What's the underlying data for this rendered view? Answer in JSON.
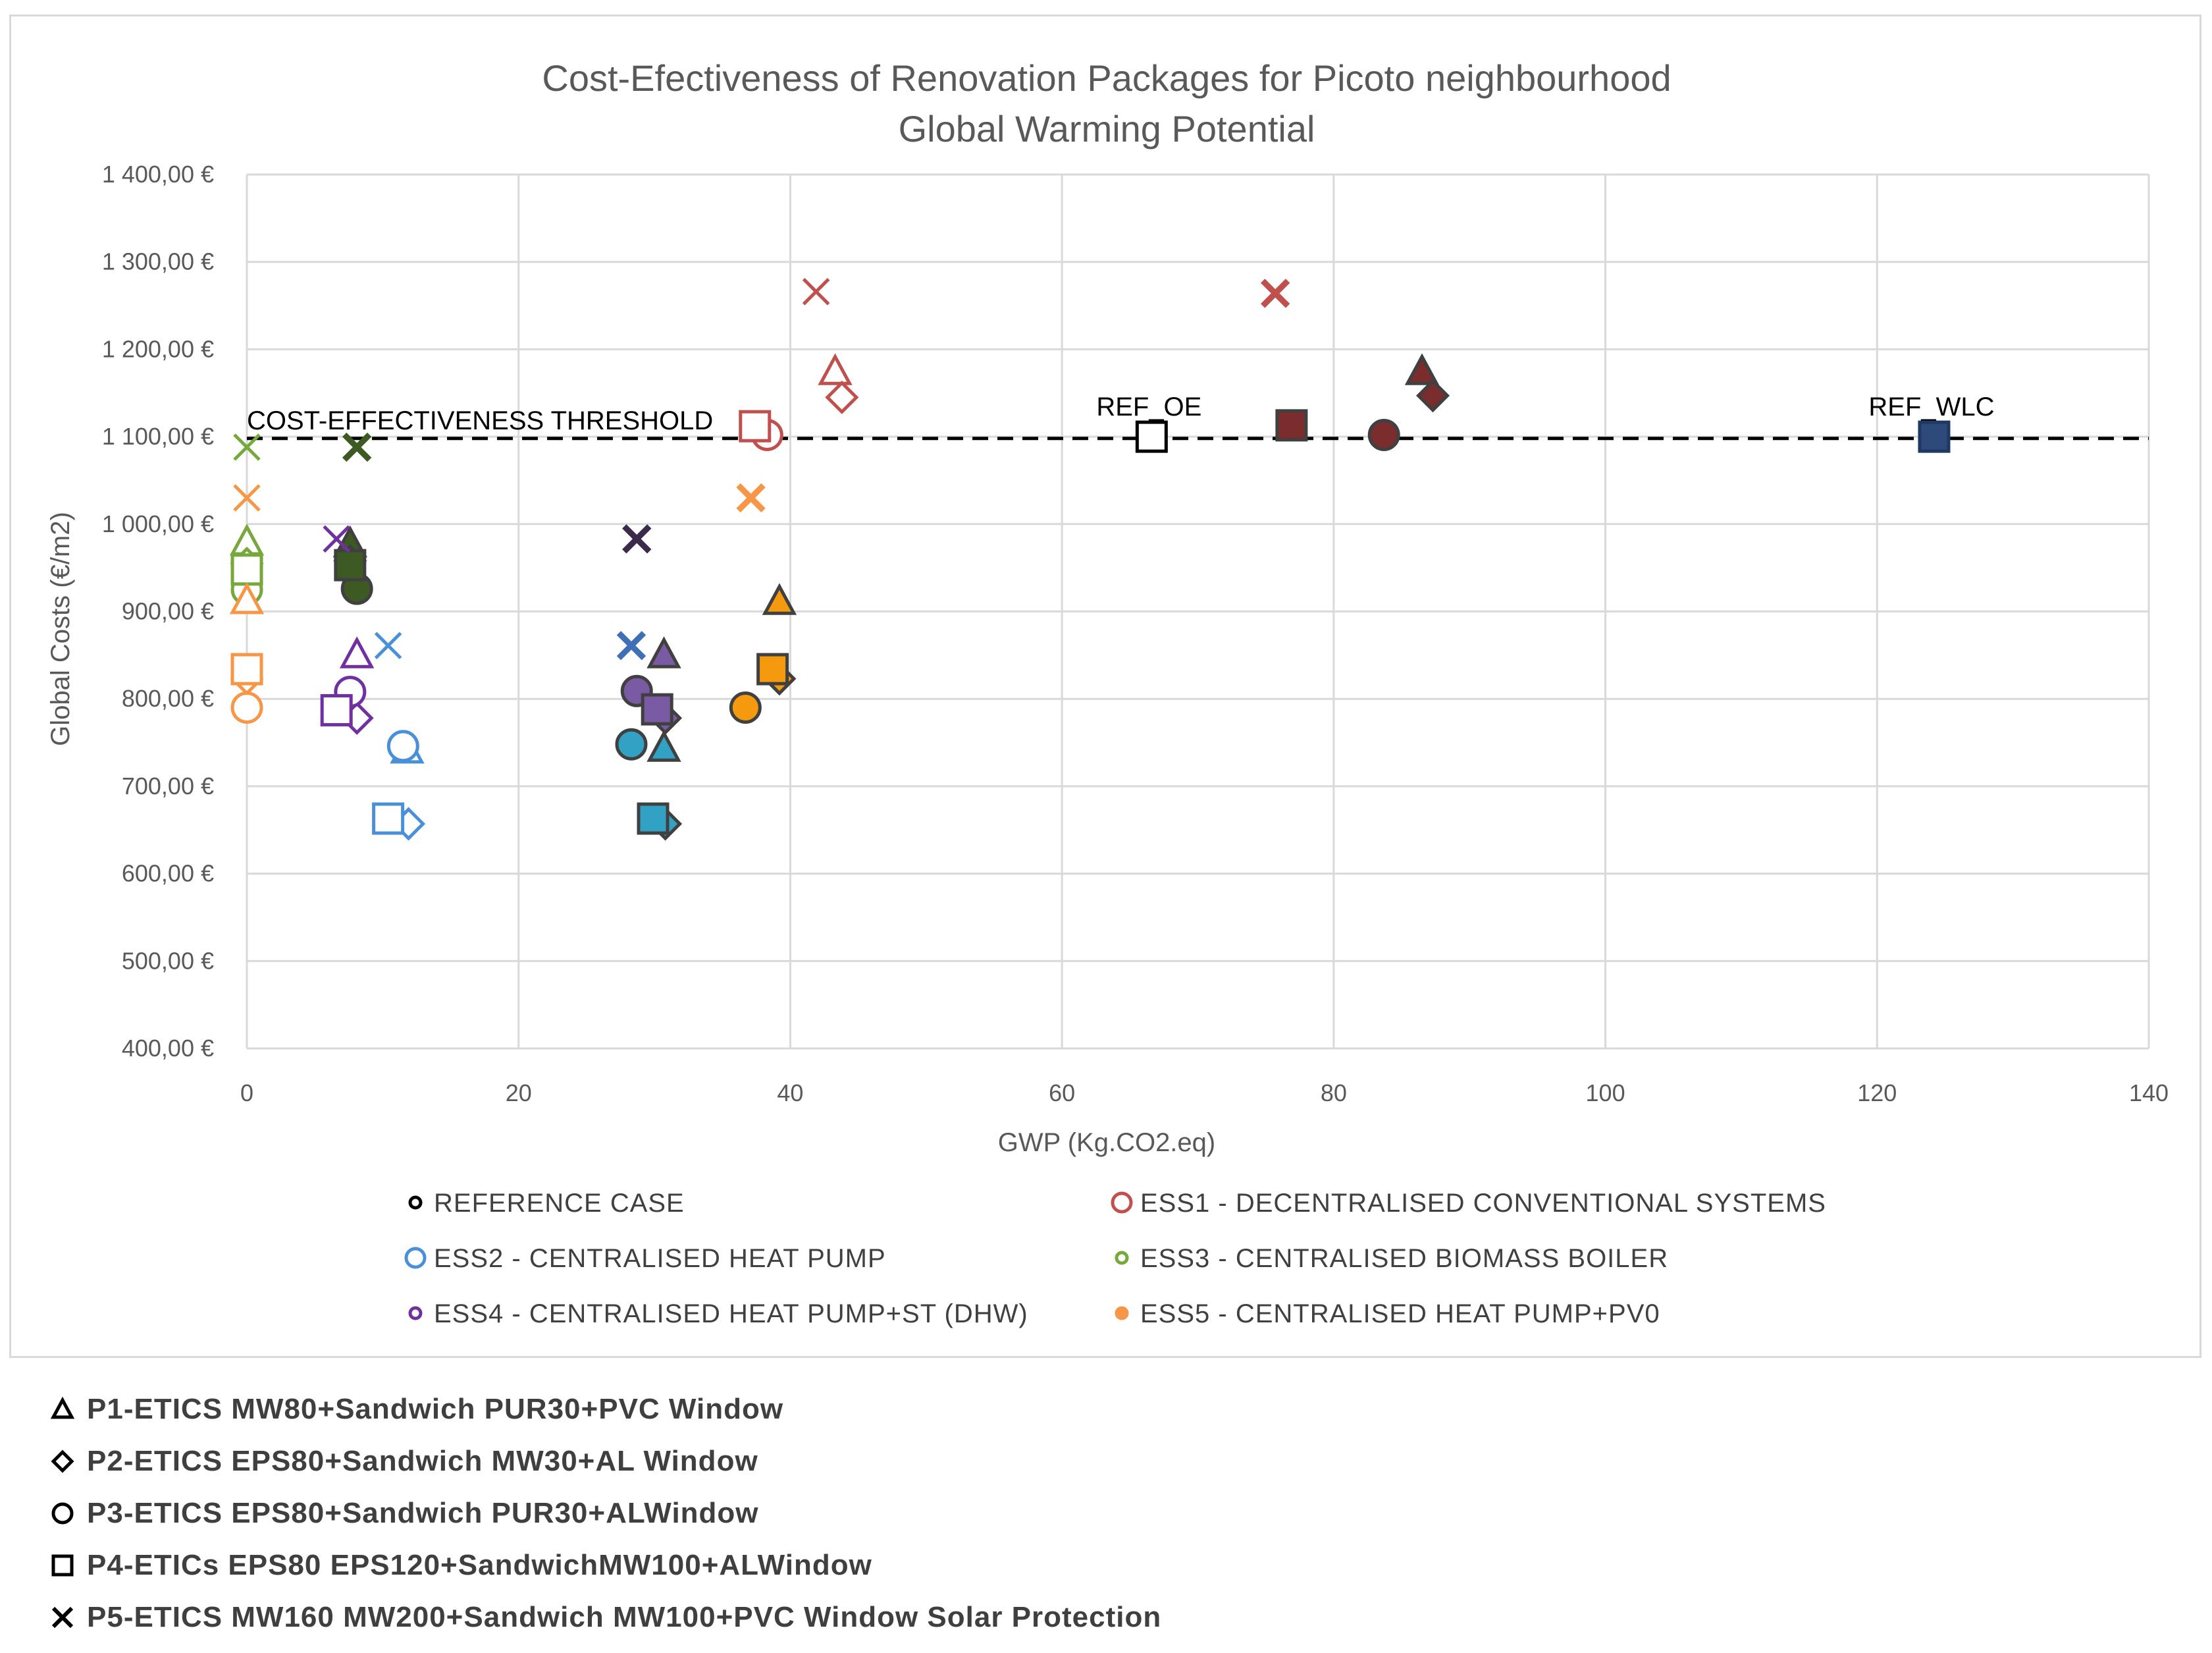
{
  "chart_data": {
    "type": "scatter",
    "title": "Cost-Efectiveness of Renovation Packages for Picoto neighbourhood",
    "subtitle": "Global Warming Potential",
    "xlabel": "GWP (Kg.CO2.eq)",
    "ylabel": "Global Costs (€/m2)",
    "xlim": [
      0,
      140
    ],
    "ylim": [
      400,
      1400
    ],
    "x_ticks": [
      "0",
      "20",
      "40",
      "60",
      "80",
      "100",
      "120",
      "140"
    ],
    "y_ticks": [
      "400,00 €",
      "500,00 €",
      "600,00 €",
      "700,00 €",
      "800,00 €",
      "900,00 €",
      "1 000,00 €",
      "1 100,00 €",
      "1 200,00 €",
      "1 300,00 €",
      "1 400,00 €"
    ],
    "grid": true,
    "threshold": {
      "label": "COST-EFFECTIVENESS  THRESHOLD",
      "y": 1098
    },
    "annotations": [
      {
        "text": "REF_OE",
        "x": 66.6,
        "y": 1100
      },
      {
        "text": "REF_WLC",
        "x": 124.2,
        "y": 1100
      }
    ],
    "series": [
      {
        "name": "REFERENCE CASE",
        "color": "#000000",
        "outline": "#1f3864",
        "points": [
          {
            "x": 66.6,
            "y": 1100,
            "marker": "square",
            "filled": false
          },
          {
            "x": 124.2,
            "y": 1100,
            "marker": "square",
            "filled": true,
            "color": "#2e4a7a"
          }
        ]
      },
      {
        "name": "ESS1 - DECENTRALISED CONVENTIONAL SYSTEMS",
        "color": "#c0504d",
        "dark": "#7b2c2c",
        "points": [
          {
            "x": 43.3,
            "y": 1175,
            "marker": "triangle",
            "filled": false
          },
          {
            "x": 43.8,
            "y": 1145,
            "marker": "diamond",
            "filled": false
          },
          {
            "x": 38.3,
            "y": 1102,
            "marker": "circle",
            "filled": false
          },
          {
            "x": 37.4,
            "y": 1112,
            "marker": "square",
            "filled": false
          },
          {
            "x": 41.9,
            "y": 1266,
            "marker": "x",
            "filled": false
          },
          {
            "x": 86.5,
            "y": 1175,
            "marker": "triangle",
            "filled": true
          },
          {
            "x": 87.3,
            "y": 1147,
            "marker": "diamond",
            "filled": true
          },
          {
            "x": 83.7,
            "y": 1102,
            "marker": "circle",
            "filled": true
          },
          {
            "x": 76.9,
            "y": 1113,
            "marker": "square",
            "filled": true
          },
          {
            "x": 75.7,
            "y": 1264,
            "marker": "x",
            "filled": true,
            "color": "#c0504d"
          }
        ]
      },
      {
        "name": "ESS2 - CENTRALISED HEAT PUMP",
        "color": "#4a90d9",
        "dark": "#2e86c1",
        "points": [
          {
            "x": 11.8,
            "y": 742,
            "marker": "triangle",
            "filled": false
          },
          {
            "x": 11.9,
            "y": 657,
            "marker": "diamond",
            "filled": false
          },
          {
            "x": 11.5,
            "y": 746,
            "marker": "circle",
            "filled": false
          },
          {
            "x": 10.4,
            "y": 663,
            "marker": "square",
            "filled": false
          },
          {
            "x": 10.4,
            "y": 861,
            "marker": "x",
            "filled": false
          },
          {
            "x": 30.7,
            "y": 744,
            "marker": "triangle",
            "filled": true,
            "color": "#31a2c4"
          },
          {
            "x": 30.8,
            "y": 657,
            "marker": "diamond",
            "filled": true,
            "color": "#31a2c4"
          },
          {
            "x": 28.3,
            "y": 748,
            "marker": "circle",
            "filled": true,
            "color": "#31a2c4"
          },
          {
            "x": 29.9,
            "y": 663,
            "marker": "square",
            "filled": true,
            "color": "#31a2c4"
          },
          {
            "x": 28.3,
            "y": 861,
            "marker": "x",
            "filled": true,
            "color": "#3e6fb7"
          }
        ]
      },
      {
        "name": "ESS3 - CENTRALISED BIOMASS BOILER",
        "color": "#77a83c",
        "dark": "#3c5a21",
        "points": [
          {
            "x": 0.0,
            "y": 980,
            "marker": "triangle",
            "filled": false
          },
          {
            "x": 0.0,
            "y": 955,
            "marker": "diamond",
            "filled": false
          },
          {
            "x": 0.0,
            "y": 925,
            "marker": "circle",
            "filled": false
          },
          {
            "x": 0.0,
            "y": 948,
            "marker": "square",
            "filled": false
          },
          {
            "x": 0.0,
            "y": 1088,
            "marker": "x",
            "filled": false
          },
          {
            "x": 7.6,
            "y": 978,
            "marker": "triangle",
            "filled": true
          },
          {
            "x": 7.6,
            "y": 958,
            "marker": "diamond",
            "filled": true
          },
          {
            "x": 8.1,
            "y": 926,
            "marker": "circle",
            "filled": true
          },
          {
            "x": 7.6,
            "y": 953,
            "marker": "square",
            "filled": true
          },
          {
            "x": 8.1,
            "y": 1088,
            "marker": "x",
            "filled": true,
            "color": "#3c5a21"
          }
        ]
      },
      {
        "name": "ESS4 - CENTRALISED HEAT PUMP+ST (DHW)",
        "color": "#7030a0",
        "dark": "#7a5ba3",
        "points": [
          {
            "x": 8.1,
            "y": 851,
            "marker": "triangle",
            "filled": false
          },
          {
            "x": 8.1,
            "y": 778,
            "marker": "diamond",
            "filled": false
          },
          {
            "x": 7.6,
            "y": 808,
            "marker": "circle",
            "filled": false
          },
          {
            "x": 6.6,
            "y": 787,
            "marker": "square",
            "filled": false
          },
          {
            "x": 6.6,
            "y": 983,
            "marker": "x",
            "filled": false
          },
          {
            "x": 30.7,
            "y": 851,
            "marker": "triangle",
            "filled": true
          },
          {
            "x": 30.8,
            "y": 778,
            "marker": "diamond",
            "filled": true
          },
          {
            "x": 28.7,
            "y": 809,
            "marker": "circle",
            "filled": true
          },
          {
            "x": 30.2,
            "y": 788,
            "marker": "square",
            "filled": true
          },
          {
            "x": 28.7,
            "y": 983,
            "marker": "x",
            "filled": true,
            "color": "#3b2a4a"
          }
        ]
      },
      {
        "name": "ESS5 - CENTRALISED HEAT PUMP+PV0",
        "color": "#f79646",
        "dark": "#f59a0e",
        "points": [
          {
            "x": 0.0,
            "y": 913,
            "marker": "triangle",
            "filled": false
          },
          {
            "x": 0.0,
            "y": 823,
            "marker": "diamond",
            "filled": false
          },
          {
            "x": 0.0,
            "y": 790,
            "marker": "circle",
            "filled": false
          },
          {
            "x": 0.0,
            "y": 834,
            "marker": "square",
            "filled": false
          },
          {
            "x": 0.0,
            "y": 1030,
            "marker": "x",
            "filled": false
          },
          {
            "x": 39.2,
            "y": 912,
            "marker": "triangle",
            "filled": true
          },
          {
            "x": 39.2,
            "y": 823,
            "marker": "diamond",
            "filled": true
          },
          {
            "x": 36.7,
            "y": 790,
            "marker": "circle",
            "filled": true
          },
          {
            "x": 38.7,
            "y": 834,
            "marker": "square",
            "filled": true
          },
          {
            "x": 37.1,
            "y": 1030,
            "marker": "x",
            "filled": true,
            "color": "#f79646"
          }
        ]
      }
    ],
    "legend_position": "bottom"
  },
  "packages": [
    {
      "symbol": "triangle",
      "label": "P1-ETICS MW80+Sandwich PUR30+PVC Window"
    },
    {
      "symbol": "diamond",
      "label": "P2-ETICS EPS80+Sandwich MW30+AL Window"
    },
    {
      "symbol": "circle",
      "label": "P3-ETICS EPS80+Sandwich PUR30+ALWindow"
    },
    {
      "symbol": "square",
      "label": "P4-ETICs EPS80 EPS120+SandwichMW100+ALWindow"
    },
    {
      "symbol": "x",
      "label": "P5-ETICS MW160 MW200+Sandwich MW100+PVC Window Solar Protection"
    }
  ]
}
